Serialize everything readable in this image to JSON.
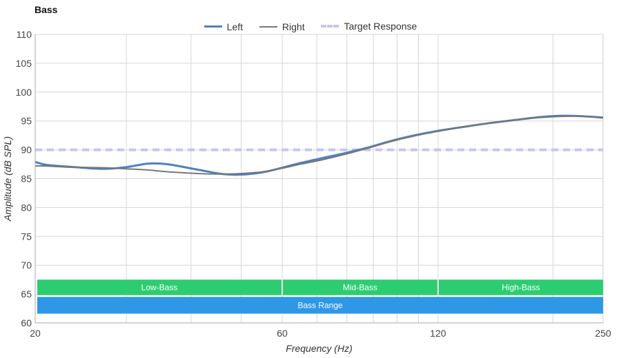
{
  "chart_data": {
    "type": "line",
    "title": "Bass",
    "xlabel": "Frequency (Hz)",
    "ylabel": "Amplitude (dB SPL)",
    "x_scale": "log",
    "xlim": [
      20,
      250
    ],
    "ylim": [
      60,
      110
    ],
    "x_ticks": [
      20,
      60,
      120,
      250
    ],
    "y_ticks": [
      60,
      65,
      70,
      75,
      80,
      85,
      90,
      95,
      100,
      105,
      110
    ],
    "grid": true,
    "legend_position": "top-center",
    "series": [
      {
        "name": "Left",
        "color": "#4f81bd",
        "style": "solid",
        "x": [
          20,
          21,
          23,
          27,
          30,
          33,
          36,
          41,
          46,
          50,
          55,
          60,
          65,
          72,
          80,
          88,
          97,
          108,
          120,
          135,
          150,
          170,
          190,
          210,
          230,
          250
        ],
        "y": [
          87.9,
          87.4,
          87.1,
          86.7,
          87.0,
          87.6,
          87.5,
          86.6,
          85.8,
          85.7,
          86.1,
          86.9,
          87.7,
          88.6,
          89.5,
          90.4,
          91.5,
          92.5,
          93.3,
          94.0,
          94.6,
          95.2,
          95.7,
          95.9,
          95.8,
          95.6
        ]
      },
      {
        "name": "Right",
        "color": "#777777",
        "style": "solid",
        "x": [
          20,
          21,
          23,
          27,
          30,
          33,
          36,
          41,
          46,
          50,
          55,
          60,
          65,
          72,
          80,
          88,
          97,
          108,
          120,
          135,
          150,
          170,
          190,
          210,
          230,
          250
        ],
        "y": [
          87.2,
          87.2,
          87.0,
          86.9,
          86.7,
          86.5,
          86.2,
          85.9,
          85.8,
          85.9,
          86.2,
          86.8,
          87.5,
          88.3,
          89.3,
          90.3,
          91.4,
          92.4,
          93.2,
          94.0,
          94.6,
          95.2,
          95.6,
          95.8,
          95.8,
          95.5
        ]
      },
      {
        "name": "Target Response",
        "color": "#c5c4f4",
        "style": "dashed",
        "x": [
          20,
          250
        ],
        "y": [
          90,
          90
        ]
      }
    ],
    "annotations": [
      {
        "label": "Low-Bass",
        "x_start": 20,
        "x_end": 60,
        "y_top": 67.5,
        "y_bottom": 64.8,
        "color": "#2ecc71"
      },
      {
        "label": "Mid-Bass",
        "x_start": 60,
        "x_end": 120,
        "y_top": 67.5,
        "y_bottom": 64.8,
        "color": "#2ecc71"
      },
      {
        "label": "High-Bass",
        "x_start": 120,
        "x_end": 250,
        "y_top": 67.5,
        "y_bottom": 64.8,
        "color": "#2ecc71"
      },
      {
        "label": "Bass Range",
        "x_start": 20,
        "x_end": 250,
        "y_top": 64.5,
        "y_bottom": 61.6,
        "color": "#2e97e6"
      }
    ]
  }
}
